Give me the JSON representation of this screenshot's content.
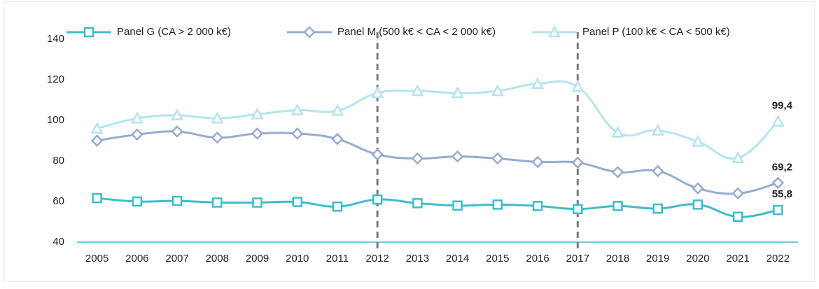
{
  "chart_data": {
    "type": "line",
    "categories": [
      "2005",
      "2006",
      "2007",
      "2008",
      "2009",
      "2010",
      "2011",
      "2012",
      "2013",
      "2014",
      "2015",
      "2016",
      "2017",
      "2018",
      "2019",
      "2020",
      "2021",
      "2022"
    ],
    "series": [
      {
        "name": "Panel G (CA > 2 000 k€)",
        "color": "#3fbccc",
        "marker": "square",
        "values": [
          61.7,
          60,
          60.3,
          59.5,
          59.5,
          59.8,
          57.5,
          61,
          59.2,
          58,
          58.5,
          57.8,
          56.3,
          57.8,
          56.5,
          58.5,
          52.5,
          55.8
        ],
        "value_labels": [
          null,
          null,
          null,
          null,
          null,
          null,
          null,
          null,
          null,
          null,
          null,
          null,
          null,
          null,
          null,
          null,
          null,
          "55,8"
        ]
      },
      {
        "name": "Panel M (500 k€ < CA < 2 000 k€)",
        "color": "#98abd0",
        "marker": "diamond",
        "values": [
          90,
          93,
          94.5,
          91.5,
          93.5,
          93.5,
          90.8,
          83.2,
          81.2,
          82.2,
          81.2,
          79.5,
          79.2,
          74.5,
          75,
          66.5,
          64,
          69.2
        ],
        "value_labels": [
          null,
          null,
          null,
          null,
          null,
          null,
          null,
          null,
          null,
          null,
          null,
          null,
          null,
          null,
          null,
          null,
          null,
          "69,2"
        ]
      },
      {
        "name": "Panel P (100 k€ < CA < 500 k€)",
        "color": "#b6e4ec",
        "marker": "triangle",
        "values": [
          96,
          101,
          102.5,
          101,
          103,
          105,
          104.8,
          113.5,
          114.5,
          113.5,
          114.5,
          118,
          116.5,
          94,
          95,
          89.5,
          81.5,
          99.4
        ],
        "value_labels": [
          null,
          null,
          null,
          null,
          null,
          null,
          null,
          null,
          null,
          null,
          null,
          null,
          null,
          null,
          null,
          null,
          null,
          "99,4"
        ]
      }
    ],
    "ylim": [
      40,
      140
    ],
    "yticks": [
      40,
      60,
      80,
      100,
      120,
      140
    ],
    "vlines": [
      "2012",
      "2017"
    ],
    "legend": "top"
  }
}
